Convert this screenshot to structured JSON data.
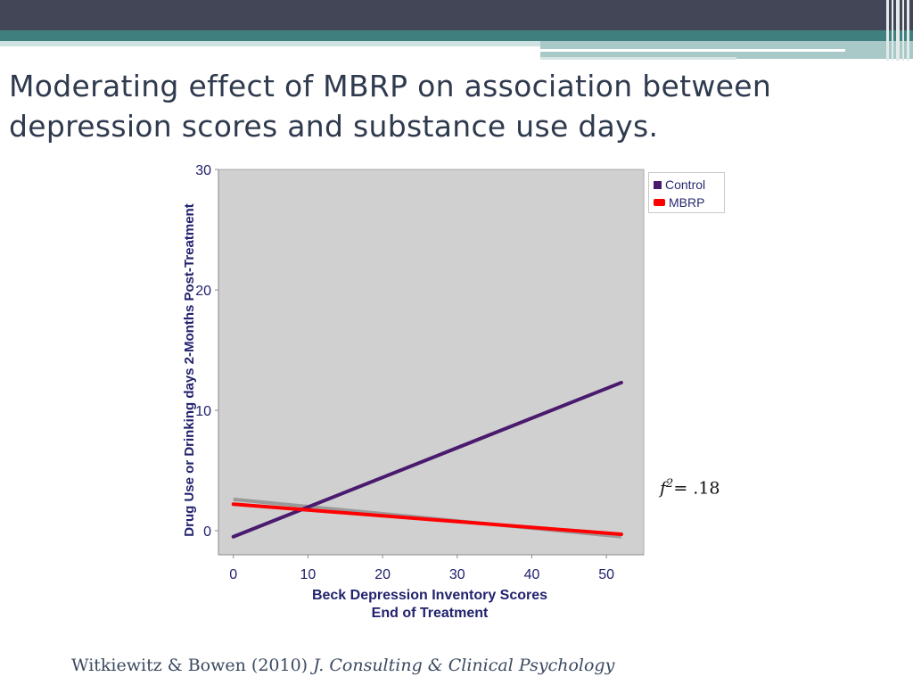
{
  "slide": {
    "title": "Moderating effect of MBRP on association between depression scores and substance use days.",
    "effect_size_symbol": "f",
    "effect_size_exponent": "2",
    "effect_size_value": "= .18",
    "citation_authors": "Witkiewitz & Bowen (2010)",
    "citation_journal": "J. Consulting & Clinical Psychology"
  },
  "colors": {
    "header_dark": "#434656",
    "header_teal": "#3f7f7e",
    "plot_background": "#d0d0d0",
    "control": "#4a1a6e",
    "mbrp": "#ff0000",
    "axis_text": "#22226e"
  },
  "chart_data": {
    "type": "line",
    "xlabel_line1": "Beck Depression Inventory Scores",
    "xlabel_line2": "End of Treatment",
    "ylabel": "Drug Use or Drinking days 2-Months Post-Treatment",
    "xlim": [
      -2,
      55
    ],
    "ylim": [
      -2,
      30
    ],
    "x_ticks": [
      0,
      10,
      20,
      30,
      40,
      50
    ],
    "y_ticks": [
      0,
      10,
      20,
      30
    ],
    "grid": false,
    "legend_position": "top-right",
    "series": [
      {
        "name": "Control",
        "x": [
          0,
          52
        ],
        "y": [
          -0.5,
          12.3
        ]
      },
      {
        "name": "MBRP",
        "x": [
          0,
          52
        ],
        "y": [
          2.2,
          -0.3
        ]
      }
    ]
  }
}
